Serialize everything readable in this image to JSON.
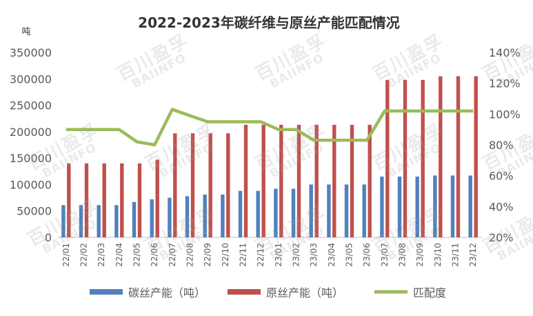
{
  "watermark": {
    "cn": "百川盈孚",
    "en": "BAIINFO"
  },
  "chart_data": {
    "type": "bar",
    "title": "2022-2023年碳纤维与原丝产能匹配情况",
    "ylabel": "吨",
    "ylim": [
      0,
      350000
    ],
    "yticks": [
      "0",
      "50000",
      "100000",
      "150000",
      "200000",
      "250000",
      "300000",
      "350000"
    ],
    "y2lim": [
      20,
      140
    ],
    "y2ticks": [
      "20%",
      "40%",
      "60%",
      "80%",
      "100%",
      "120%",
      "140%"
    ],
    "categories": [
      "22/01",
      "22/02",
      "22/03",
      "22/04",
      "22/05",
      "22/06",
      "22/07",
      "22/08",
      "22/09",
      "22/10",
      "22/11",
      "22/12",
      "23/01",
      "23/02",
      "23/03",
      "23/04",
      "23/05",
      "23/06",
      "23/07",
      "23/08",
      "23/09",
      "23/10",
      "23/11",
      "23/12"
    ],
    "series": [
      {
        "name": "碳丝产能（吨）",
        "type": "bar",
        "axis": "left",
        "color": "#4F81BD",
        "values": [
          61000,
          61000,
          61000,
          61000,
          67000,
          72000,
          75000,
          78000,
          81000,
          81000,
          88000,
          88000,
          92000,
          92000,
          100000,
          100000,
          100000,
          100000,
          115000,
          115000,
          115000,
          117000,
          117000,
          117000
        ]
      },
      {
        "name": "原丝产能（吨）",
        "type": "bar",
        "axis": "left",
        "color": "#C0504D",
        "values": [
          140000,
          140000,
          140000,
          140000,
          140000,
          147000,
          197000,
          197000,
          197000,
          197000,
          213000,
          213000,
          213000,
          213000,
          213000,
          213000,
          213000,
          213000,
          298000,
          298000,
          298000,
          305000,
          305000,
          305000
        ]
      },
      {
        "name": "匹配度",
        "type": "line",
        "axis": "right",
        "color": "#9BBB59",
        "values": [
          90,
          90,
          90,
          90,
          82,
          80,
          103,
          99,
          95,
          95,
          95,
          95,
          90,
          90,
          83,
          83,
          83,
          83,
          102,
          102,
          102,
          102,
          102,
          102
        ]
      }
    ],
    "legend_position": "bottom",
    "grid": false
  }
}
